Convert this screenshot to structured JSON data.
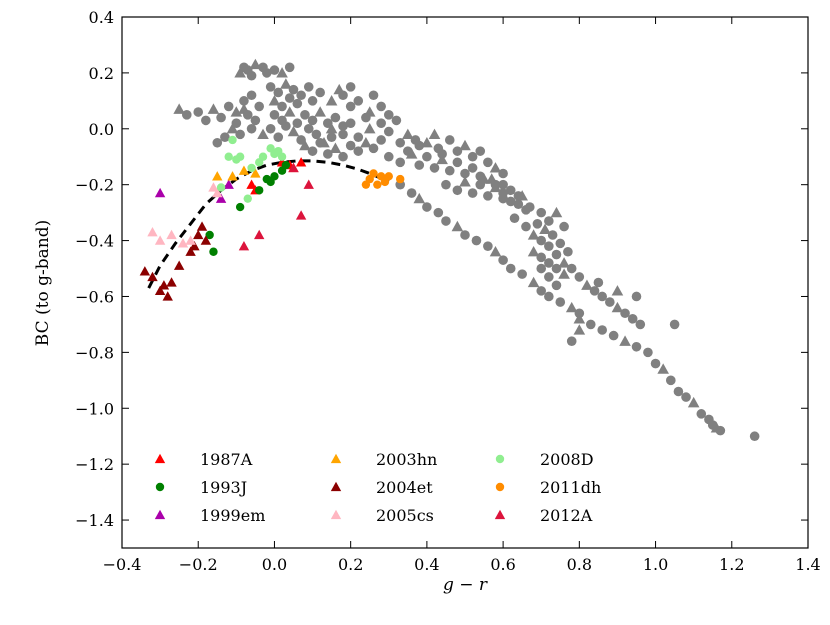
{
  "chart_data": {
    "type": "scatter",
    "title": "",
    "xlabel": "g − r",
    "ylabel": "BC (to g-band)",
    "xlim": [
      -0.4,
      1.4
    ],
    "ylim": [
      -1.5,
      0.4
    ],
    "xticks": [
      -0.4,
      -0.2,
      0.0,
      0.2,
      0.4,
      0.6,
      0.8,
      1.0,
      1.2,
      1.4
    ],
    "xtick_labels": [
      "−0.4",
      "−0.2",
      "0.0",
      "0.2",
      "0.4",
      "0.6",
      "0.8",
      "1.0",
      "1.2",
      "1.4"
    ],
    "yticks": [
      -1.4,
      -1.2,
      -1.0,
      -0.8,
      -0.6,
      -0.4,
      -0.2,
      0.0,
      0.2,
      0.4
    ],
    "ytick_labels": [
      "−1.4",
      "−1.2",
      "−1.0",
      "−0.8",
      "−0.6",
      "−0.4",
      "−0.2",
      "0.0",
      "0.2",
      "0.4"
    ],
    "grid": false,
    "legend_position": "lower-left",
    "background_cloud": {
      "color": "#808080",
      "description_markers": [
        "circle",
        "triangle"
      ],
      "points": [
        [
          -0.25,
          0.07
        ],
        [
          -0.23,
          0.05
        ],
        [
          -0.2,
          0.06
        ],
        [
          -0.18,
          0.03
        ],
        [
          -0.16,
          0.07
        ],
        [
          -0.14,
          0.04
        ],
        [
          -0.12,
          0.08
        ],
        [
          -0.1,
          0.02
        ],
        [
          -0.08,
          0.07
        ],
        [
          -0.06,
          0.0
        ],
        [
          -0.15,
          -0.05
        ],
        [
          -0.13,
          -0.03
        ],
        [
          -0.11,
          0.0
        ],
        [
          -0.09,
          -0.02
        ],
        [
          -0.07,
          0.05
        ],
        [
          -0.05,
          0.03
        ],
        [
          -0.1,
          0.06
        ],
        [
          -0.08,
          0.1
        ],
        [
          -0.06,
          0.12
        ],
        [
          -0.04,
          0.08
        ],
        [
          -0.09,
          0.2
        ],
        [
          -0.08,
          0.22
        ],
        [
          -0.07,
          0.21
        ],
        [
          -0.06,
          0.19
        ],
        [
          -0.05,
          0.23
        ],
        [
          -0.03,
          0.22
        ],
        [
          -0.02,
          0.2
        ],
        [
          0.0,
          0.21
        ],
        [
          0.02,
          0.2
        ],
        [
          0.04,
          0.22
        ],
        [
          -0.01,
          0.15
        ],
        [
          0.01,
          0.13
        ],
        [
          0.03,
          0.16
        ],
        [
          0.05,
          0.14
        ],
        [
          0.07,
          0.12
        ],
        [
          0.09,
          0.15
        ],
        [
          0.0,
          0.1
        ],
        [
          0.02,
          0.08
        ],
        [
          0.04,
          0.11
        ],
        [
          0.06,
          0.09
        ],
        [
          -0.03,
          -0.02
        ],
        [
          -0.01,
          0.0
        ],
        [
          0.01,
          -0.03
        ],
        [
          0.03,
          0.01
        ],
        [
          0.05,
          -0.01
        ],
        [
          0.07,
          -0.04
        ],
        [
          0.09,
          0.0
        ],
        [
          0.11,
          -0.02
        ],
        [
          0.13,
          -0.05
        ],
        [
          0.15,
          -0.03
        ],
        [
          0.0,
          0.05
        ],
        [
          0.02,
          0.03
        ],
        [
          0.04,
          0.06
        ],
        [
          0.06,
          0.02
        ],
        [
          0.08,
          0.05
        ],
        [
          0.1,
          0.03
        ],
        [
          0.12,
          0.06
        ],
        [
          0.14,
          0.02
        ],
        [
          0.16,
          0.04
        ],
        [
          0.18,
          0.01
        ],
        [
          0.08,
          -0.06
        ],
        [
          0.1,
          -0.08
        ],
        [
          0.12,
          -0.05
        ],
        [
          0.14,
          -0.09
        ],
        [
          0.16,
          -0.07
        ],
        [
          0.18,
          -0.1
        ],
        [
          0.2,
          -0.06
        ],
        [
          0.22,
          -0.08
        ],
        [
          0.24,
          -0.05
        ],
        [
          0.26,
          -0.07
        ],
        [
          0.1,
          0.1
        ],
        [
          0.12,
          0.13
        ],
        [
          0.15,
          0.1
        ],
        [
          0.18,
          0.12
        ],
        [
          0.2,
          0.08
        ],
        [
          0.22,
          0.1
        ],
        [
          0.25,
          0.06
        ],
        [
          0.28,
          0.08
        ],
        [
          0.3,
          0.05
        ],
        [
          0.32,
          0.03
        ],
        [
          0.15,
          0.0
        ],
        [
          0.18,
          -0.02
        ],
        [
          0.2,
          0.02
        ],
        [
          0.22,
          -0.03
        ],
        [
          0.25,
          0.0
        ],
        [
          0.28,
          -0.04
        ],
        [
          0.3,
          -0.01
        ],
        [
          0.33,
          -0.05
        ],
        [
          0.35,
          -0.02
        ],
        [
          0.38,
          -0.06
        ],
        [
          0.3,
          -0.1
        ],
        [
          0.33,
          -0.12
        ],
        [
          0.36,
          -0.09
        ],
        [
          0.38,
          -0.13
        ],
        [
          0.4,
          -0.1
        ],
        [
          0.42,
          -0.14
        ],
        [
          0.44,
          -0.11
        ],
        [
          0.46,
          -0.15
        ],
        [
          0.48,
          -0.12
        ],
        [
          0.5,
          -0.16
        ],
        [
          0.4,
          -0.05
        ],
        [
          0.43,
          -0.07
        ],
        [
          0.46,
          -0.04
        ],
        [
          0.48,
          -0.08
        ],
        [
          0.5,
          -0.06
        ],
        [
          0.52,
          -0.1
        ],
        [
          0.54,
          -0.08
        ],
        [
          0.56,
          -0.12
        ],
        [
          0.58,
          -0.14
        ],
        [
          0.6,
          -0.16
        ],
        [
          0.45,
          -0.2
        ],
        [
          0.48,
          -0.22
        ],
        [
          0.5,
          -0.19
        ],
        [
          0.52,
          -0.23
        ],
        [
          0.54,
          -0.2
        ],
        [
          0.56,
          -0.24
        ],
        [
          0.58,
          -0.21
        ],
        [
          0.6,
          -0.25
        ],
        [
          0.62,
          -0.22
        ],
        [
          0.64,
          -0.27
        ],
        [
          0.55,
          -0.18
        ],
        [
          0.58,
          -0.2
        ],
        [
          0.6,
          -0.23
        ],
        [
          0.62,
          -0.26
        ],
        [
          0.65,
          -0.24
        ],
        [
          0.67,
          -0.28
        ],
        [
          0.7,
          -0.3
        ],
        [
          0.72,
          -0.33
        ],
        [
          0.74,
          -0.3
        ],
        [
          0.76,
          -0.35
        ],
        [
          0.33,
          -0.2
        ],
        [
          0.36,
          -0.23
        ],
        [
          0.38,
          -0.25
        ],
        [
          0.4,
          -0.28
        ],
        [
          0.43,
          -0.3
        ],
        [
          0.45,
          -0.33
        ],
        [
          0.48,
          -0.35
        ],
        [
          0.5,
          -0.38
        ],
        [
          0.53,
          -0.4
        ],
        [
          0.56,
          -0.42
        ],
        [
          0.58,
          -0.44
        ],
        [
          0.6,
          -0.47
        ],
        [
          0.62,
          -0.5
        ],
        [
          0.65,
          -0.52
        ],
        [
          0.68,
          -0.55
        ],
        [
          0.7,
          -0.58
        ],
        [
          0.72,
          -0.6
        ],
        [
          0.75,
          -0.62
        ],
        [
          0.78,
          -0.64
        ],
        [
          0.8,
          -0.66
        ],
        [
          0.63,
          -0.32
        ],
        [
          0.66,
          -0.35
        ],
        [
          0.68,
          -0.38
        ],
        [
          0.7,
          -0.4
        ],
        [
          0.72,
          -0.42
        ],
        [
          0.74,
          -0.45
        ],
        [
          0.76,
          -0.48
        ],
        [
          0.7,
          -0.5
        ],
        [
          0.72,
          -0.53
        ],
        [
          0.74,
          -0.56
        ],
        [
          0.68,
          -0.44
        ],
        [
          0.7,
          -0.46
        ],
        [
          0.72,
          -0.48
        ],
        [
          0.74,
          -0.5
        ],
        [
          0.76,
          -0.52
        ],
        [
          0.73,
          -0.38
        ],
        [
          0.75,
          -0.41
        ],
        [
          0.77,
          -0.44
        ],
        [
          0.71,
          -0.36
        ],
        [
          0.69,
          -0.34
        ],
        [
          0.78,
          -0.5
        ],
        [
          0.8,
          -0.53
        ],
        [
          0.82,
          -0.56
        ],
        [
          0.84,
          -0.58
        ],
        [
          0.86,
          -0.6
        ],
        [
          0.88,
          -0.62
        ],
        [
          0.9,
          -0.64
        ],
        [
          0.92,
          -0.66
        ],
        [
          0.94,
          -0.68
        ],
        [
          0.96,
          -0.7
        ],
        [
          0.8,
          -0.68
        ],
        [
          0.83,
          -0.7
        ],
        [
          0.86,
          -0.72
        ],
        [
          0.89,
          -0.74
        ],
        [
          0.92,
          -0.76
        ],
        [
          0.95,
          -0.78
        ],
        [
          0.98,
          -0.8
        ],
        [
          1.0,
          -0.84
        ],
        [
          1.02,
          -0.86
        ],
        [
          1.04,
          -0.9
        ],
        [
          1.06,
          -0.94
        ],
        [
          1.08,
          -0.96
        ],
        [
          1.1,
          -0.98
        ],
        [
          1.12,
          -1.02
        ],
        [
          1.14,
          -1.04
        ],
        [
          1.15,
          -1.06
        ],
        [
          1.16,
          -1.07
        ],
        [
          1.17,
          -1.08
        ],
        [
          1.05,
          -0.7
        ],
        [
          1.26,
          -1.1
        ],
        [
          0.9,
          -0.58
        ],
        [
          0.95,
          -0.6
        ],
        [
          0.85,
          -0.55
        ],
        [
          0.78,
          -0.76
        ],
        [
          0.8,
          -0.72
        ],
        [
          0.28,
          0.02
        ],
        [
          0.24,
          0.04
        ],
        [
          0.2,
          0.15
        ],
        [
          0.17,
          0.14
        ],
        [
          0.26,
          0.12
        ],
        [
          0.35,
          -0.08
        ],
        [
          0.37,
          -0.04
        ],
        [
          0.42,
          -0.02
        ],
        [
          0.44,
          -0.09
        ],
        [
          0.52,
          -0.14
        ],
        [
          0.54,
          -0.17
        ],
        [
          0.57,
          -0.18
        ],
        [
          0.6,
          -0.2
        ],
        [
          0.64,
          -0.24
        ],
        [
          0.66,
          -0.29
        ]
      ]
    },
    "curve": {
      "style": "dashed",
      "color": "#000000",
      "x": [
        -0.33,
        -0.3,
        -0.26,
        -0.22,
        -0.18,
        -0.14,
        -0.1,
        -0.06,
        -0.02,
        0.02,
        0.06,
        0.1,
        0.14,
        0.18,
        0.22,
        0.26,
        0.3
      ],
      "y": [
        -0.57,
        -0.49,
        -0.41,
        -0.34,
        -0.27,
        -0.22,
        -0.18,
        -0.15,
        -0.13,
        -0.12,
        -0.115,
        -0.115,
        -0.12,
        -0.13,
        -0.145,
        -0.165,
        -0.19
      ]
    },
    "series": [
      {
        "name": "1987A",
        "color": "#ff0000",
        "marker": "triangle",
        "x": [
          -0.06,
          -0.05,
          0.02,
          0.04,
          0.05,
          0.07
        ],
        "y": [
          -0.2,
          -0.22,
          -0.12,
          -0.13,
          -0.14,
          -0.12
        ]
      },
      {
        "name": "1993J",
        "color": "#008000",
        "marker": "circle",
        "x": [
          -0.17,
          -0.16,
          -0.09,
          -0.04,
          -0.02,
          -0.01,
          0.0,
          0.02,
          0.03
        ],
        "y": [
          -0.38,
          -0.44,
          -0.28,
          -0.22,
          -0.18,
          -0.19,
          -0.17,
          -0.15,
          -0.13
        ]
      },
      {
        "name": "1999em",
        "color": "#aa00aa",
        "marker": "triangle",
        "x": [
          -0.3,
          -0.14,
          -0.12
        ],
        "y": [
          -0.23,
          -0.25,
          -0.2
        ]
      },
      {
        "name": "2003hn",
        "color": "#ffa500",
        "marker": "triangle",
        "x": [
          -0.15,
          -0.11,
          -0.08,
          -0.05
        ],
        "y": [
          -0.17,
          -0.17,
          -0.15,
          -0.16
        ]
      },
      {
        "name": "2004et",
        "color": "#8b0000",
        "marker": "triangle",
        "x": [
          -0.34,
          -0.32,
          -0.3,
          -0.29,
          -0.28,
          -0.27,
          -0.25,
          -0.22,
          -0.21,
          -0.2,
          -0.19,
          -0.18
        ],
        "y": [
          -0.51,
          -0.53,
          -0.58,
          -0.56,
          -0.6,
          -0.55,
          -0.49,
          -0.44,
          -0.42,
          -0.38,
          -0.35,
          -0.4
        ]
      },
      {
        "name": "2005cs",
        "color": "#ffb6c1",
        "marker": "triangle",
        "x": [
          -0.32,
          -0.3,
          -0.27,
          -0.24,
          -0.22,
          -0.16,
          -0.15
        ],
        "y": [
          -0.37,
          -0.4,
          -0.38,
          -0.41,
          -0.4,
          -0.21,
          -0.23
        ]
      },
      {
        "name": "2008D",
        "color": "#90ee90",
        "marker": "circle",
        "x": [
          -0.14,
          -0.12,
          -0.11,
          -0.1,
          -0.09,
          -0.07,
          -0.06,
          -0.04,
          -0.03,
          -0.01,
          0.0,
          0.01,
          0.02
        ],
        "y": [
          -0.21,
          -0.1,
          -0.04,
          -0.11,
          -0.1,
          -0.25,
          -0.14,
          -0.12,
          -0.1,
          -0.07,
          -0.09,
          -0.08,
          -0.1
        ]
      },
      {
        "name": "2011dh",
        "color": "#ff8c00",
        "marker": "circle",
        "x": [
          0.24,
          0.25,
          0.26,
          0.27,
          0.28,
          0.29,
          0.3,
          0.33
        ],
        "y": [
          -0.2,
          -0.18,
          -0.16,
          -0.2,
          -0.17,
          -0.19,
          -0.17,
          -0.18
        ]
      },
      {
        "name": "2012A",
        "color": "#dc143c",
        "marker": "triangle",
        "x": [
          -0.08,
          -0.04,
          0.07,
          0.09,
          0.05
        ],
        "y": [
          -0.42,
          -0.38,
          -0.31,
          -0.2,
          -0.14
        ]
      }
    ],
    "legend_columns": [
      [
        "1987A",
        "1993J",
        "1999em"
      ],
      [
        "2003hn",
        "2004et",
        "2005cs"
      ],
      [
        "2008D",
        "2011dh",
        "2012A"
      ]
    ]
  }
}
